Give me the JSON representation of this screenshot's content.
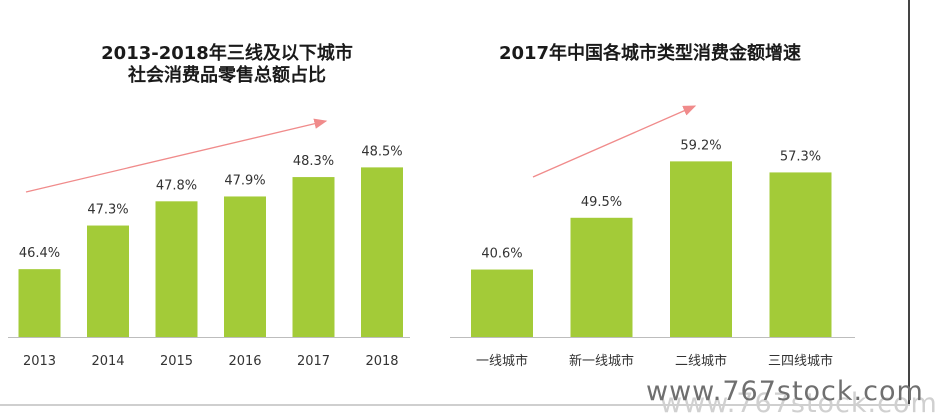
{
  "colors": {
    "bar": "#a3cb38",
    "arrow": "#f08b8b",
    "text": "#333333",
    "title": "#1a1a1a",
    "axis": "#bdbdbd"
  },
  "watermark": "www.767stock.com",
  "chart_data": [
    {
      "type": "bar",
      "title": "2013-2018年三线及以下城市",
      "subtitle": "社会消费品零售总额占比",
      "categories": [
        "2013",
        "2014",
        "2015",
        "2016",
        "2017",
        "2018"
      ],
      "values": [
        46.4,
        47.3,
        47.8,
        47.9,
        48.3,
        48.5
      ],
      "value_labels": [
        "46.4%",
        "47.3%",
        "47.8%",
        "47.9%",
        "48.3%",
        "48.5%"
      ],
      "ylim": [
        45.0,
        48.9
      ],
      "grid": false,
      "trend_arrow": true
    },
    {
      "type": "bar",
      "title": "2017年中国各城市类型消费金额增速",
      "subtitle": "",
      "categories": [
        "一线城市",
        "新一线城市",
        "二线城市",
        "三四线城市"
      ],
      "values": [
        40.6,
        49.5,
        59.2,
        57.3
      ],
      "value_labels": [
        "40.6%",
        "49.5%",
        "59.2%",
        "57.3%"
      ],
      "ylim": [
        29.0,
        61.5
      ],
      "grid": false,
      "trend_arrow": true
    }
  ]
}
